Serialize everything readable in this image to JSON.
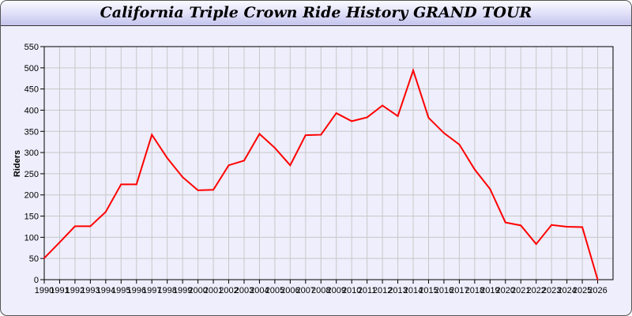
{
  "window": {
    "title": "California Triple Crown Ride History GRAND TOUR"
  },
  "chart_data": {
    "type": "line",
    "title": "California Triple Crown Ride History GRAND TOUR",
    "xlabel": "",
    "ylabel": "Riders",
    "xlim": [
      1990,
      2027
    ],
    "ylim": [
      0,
      550
    ],
    "ytick_step": 50,
    "grid": true,
    "line_color": "#ff0000",
    "x": [
      1990,
      1991,
      1992,
      1993,
      1994,
      1995,
      1996,
      1997,
      1998,
      1999,
      2000,
      2001,
      2002,
      2003,
      2004,
      2005,
      2006,
      2007,
      2008,
      2009,
      2010,
      2011,
      2012,
      2013,
      2014,
      2015,
      2016,
      2017,
      2018,
      2019,
      2020,
      2021,
      2022,
      2023,
      2024,
      2025,
      2026
    ],
    "series": [
      {
        "values": [
          51,
          88,
          126,
          126,
          160,
          225,
          225,
          342,
          287,
          242,
          211,
          212,
          270,
          281,
          344,
          311,
          270,
          341,
          342,
          393,
          374,
          383,
          411,
          386,
          494,
          382,
          346,
          319,
          260,
          214,
          135,
          128,
          84,
          129,
          125,
          124,
          0
        ]
      }
    ]
  }
}
